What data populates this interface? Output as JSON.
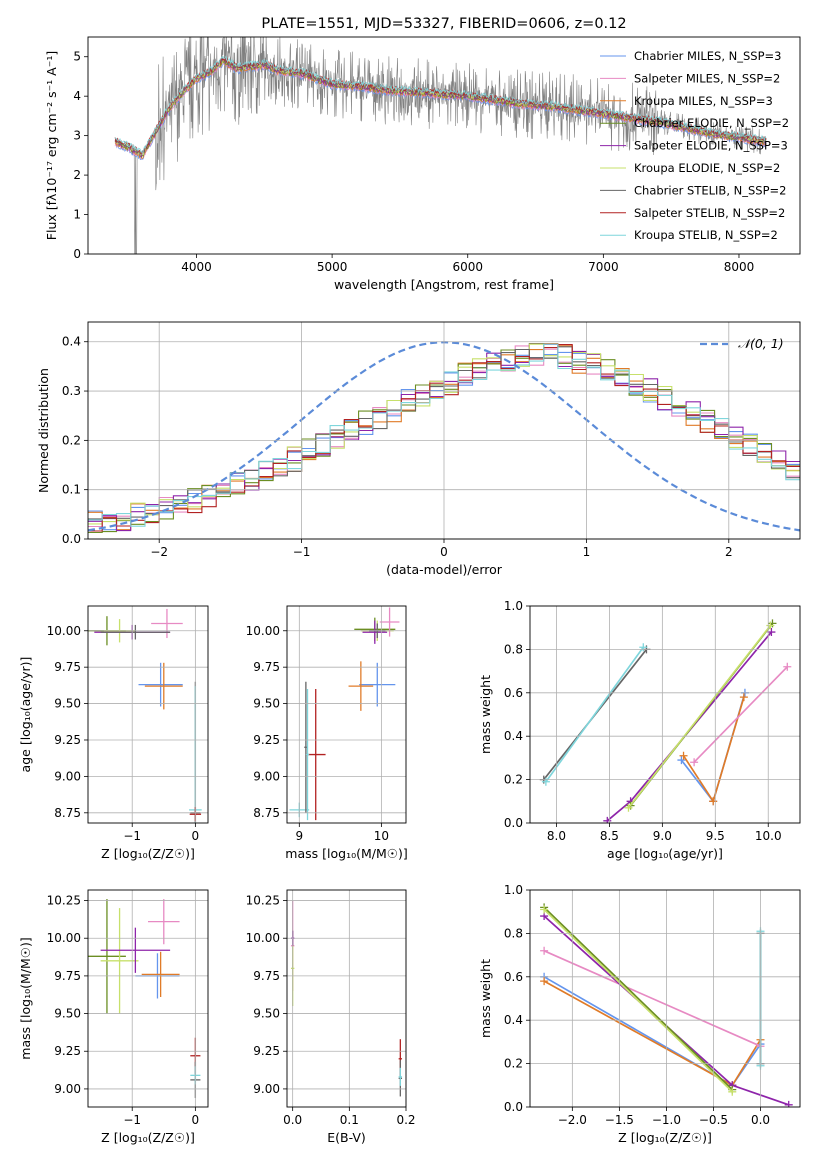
{
  "figure": {
    "background": "#ffffff",
    "line_colors": [
      "#6495ed",
      "#e78ac3",
      "#e07b28",
      "#6b8e23",
      "#8e24aa",
      "#c7e06b",
      "#666666",
      "#b22222",
      "#7fd6dc"
    ]
  },
  "chart_data": [
    {
      "id": "spectrum",
      "type": "line",
      "title": "PLATE=1551, MJD=53327, FIBERID=0606, z=0.12",
      "xlabel": "wavelength [Angstrom, rest frame]",
      "ylabel": "Flux [fλ10⁻¹⁷ erg cm⁻² s⁻¹ A⁻¹]",
      "xlim": [
        3200,
        8450
      ],
      "ylim": [
        0,
        5.5
      ],
      "xticks": [
        4000,
        5000,
        6000,
        7000,
        8000
      ],
      "yticks": [
        0,
        1,
        2,
        3,
        4,
        5
      ],
      "grid": false,
      "legend_position": "upper-right",
      "data_color": "#808080",
      "data_x_range": [
        3400,
        8200
      ],
      "model_x": [
        3400,
        3500,
        3600,
        3700,
        3800,
        3900,
        4000,
        4100,
        4200,
        4300,
        4400,
        4500,
        4600,
        4800,
        5000,
        5200,
        5400,
        5600,
        5800,
        6000,
        6200,
        6400,
        6600,
        6800,
        7000,
        7200,
        7400,
        7600,
        7800,
        8000,
        8200
      ],
      "model_y": [
        2.85,
        2.7,
        2.5,
        3.1,
        3.7,
        4.1,
        4.45,
        4.6,
        4.9,
        4.7,
        4.75,
        4.8,
        4.65,
        4.55,
        4.3,
        4.25,
        4.15,
        4.1,
        4.05,
        4.0,
        3.9,
        3.8,
        3.75,
        3.65,
        3.55,
        3.45,
        3.35,
        3.2,
        3.05,
        2.95,
        2.85
      ],
      "series": [
        {
          "name": "Chabrier MILES, N_SSP=3",
          "color": "#6495ed"
        },
        {
          "name": "Salpeter MILES, N_SSP=2",
          "color": "#e78ac3"
        },
        {
          "name": "Kroupa MILES, N_SSP=3",
          "color": "#e07b28"
        },
        {
          "name": "Chabrier ELODIE, N_SSP=2",
          "color": "#6b8e23"
        },
        {
          "name": "Salpeter ELODIE, N_SSP=3",
          "color": "#8e24aa"
        },
        {
          "name": "Kroupa ELODIE, N_SSP=2",
          "color": "#c7e06b"
        },
        {
          "name": "Chabrier STELIB, N_SSP=2",
          "color": "#666666"
        },
        {
          "name": "Salpeter STELIB, N_SSP=2",
          "color": "#b22222"
        },
        {
          "name": "Kroupa STELIB, N_SSP=2",
          "color": "#7fd6dc"
        }
      ]
    },
    {
      "id": "residuals",
      "type": "histogram",
      "xlabel": "(data-model)/error",
      "ylabel": "Normed distribution",
      "xlim": [
        -2.5,
        2.5
      ],
      "ylim": [
        0,
        0.44
      ],
      "xticks": [
        -2,
        -1,
        0,
        1,
        2
      ],
      "yticks": [
        0.0,
        0.1,
        0.2,
        0.3,
        0.4
      ],
      "grid": true,
      "legend_position": "upper-right",
      "reference": {
        "name": "𝒩(0, 1)",
        "color": "#5b8bd8",
        "style": "dashed"
      },
      "bin_width": 0.1,
      "bin_start": -2.5,
      "histogram_values": [
        0.035,
        0.038,
        0.042,
        0.05,
        0.058,
        0.062,
        0.07,
        0.078,
        0.088,
        0.098,
        0.11,
        0.123,
        0.135,
        0.15,
        0.162,
        0.178,
        0.19,
        0.205,
        0.218,
        0.235,
        0.245,
        0.26,
        0.278,
        0.29,
        0.3,
        0.315,
        0.335,
        0.345,
        0.355,
        0.36,
        0.37,
        0.375,
        0.375,
        0.37,
        0.36,
        0.355,
        0.345,
        0.33,
        0.315,
        0.3,
        0.285,
        0.27,
        0.255,
        0.238,
        0.22,
        0.205,
        0.19,
        0.175,
        0.16,
        0.145
      ],
      "histogram_colors": [
        "#6495ed",
        "#e78ac3",
        "#e07b28",
        "#6b8e23",
        "#8e24aa",
        "#c7e06b",
        "#666666",
        "#b22222",
        "#7fd6dc"
      ]
    },
    {
      "id": "age-vs-z",
      "type": "errorbar",
      "xlabel": "Z [log₁₀(Z/Z☉)]",
      "ylabel": "age  [log₁₀(age/yr)]",
      "xlim": [
        -1.7,
        0.2
      ],
      "ylim": [
        8.68,
        10.17
      ],
      "xticks": [
        -1,
        0
      ],
      "yticks": [
        8.75,
        9.0,
        9.25,
        9.5,
        9.75,
        10.0
      ],
      "grid": true,
      "points": [
        {
          "x": -1.4,
          "y": 10.0,
          "xerr": 0.3,
          "yerr": 0.1,
          "color": "#6b8e23"
        },
        {
          "x": -1.2,
          "y": 10.0,
          "xerr": 0.25,
          "yerr": 0.08,
          "color": "#c7e06b"
        },
        {
          "x": -0.45,
          "y": 10.05,
          "xerr": 0.25,
          "yerr": 0.1,
          "color": "#e78ac3"
        },
        {
          "x": -0.55,
          "y": 9.63,
          "xerr": 0.35,
          "yerr": 0.15,
          "color": "#6495ed"
        },
        {
          "x": -0.5,
          "y": 9.62,
          "xerr": 0.3,
          "yerr": 0.16,
          "color": "#e07b28"
        },
        {
          "x": -1.0,
          "y": 9.99,
          "xerr": 0.6,
          "yerr": 0.05,
          "color": "#8e24aa"
        },
        {
          "x": -0.95,
          "y": 9.99,
          "xerr": 0.55,
          "yerr": 0.05,
          "color": "#666666"
        },
        {
          "x": 0.0,
          "y": 8.75,
          "xerr": 0.08,
          "yerr": 0.9,
          "color": "#666666"
        },
        {
          "x": 0.0,
          "y": 8.77,
          "xerr": 0.1,
          "yerr": 0.85,
          "color": "#7fd6dc"
        },
        {
          "x": 0.0,
          "y": 8.74,
          "xerr": 0.09,
          "yerr": 0.05,
          "color": "#b22222"
        }
      ]
    },
    {
      "id": "age-vs-mass",
      "type": "errorbar",
      "xlabel": "mass [log₁₀(M/M☉)]",
      "ylabel": "",
      "xlim": [
        8.85,
        10.3
      ],
      "ylim": [
        8.68,
        10.17
      ],
      "xticks": [
        9,
        10
      ],
      "yticks": [
        8.75,
        9.0,
        9.25,
        9.5,
        9.75,
        10.0
      ],
      "grid": true,
      "points": [
        {
          "x": 9.0,
          "y": 8.77,
          "xerr": 0.12,
          "yerr": 0.05,
          "color": "#7fd6dc"
        },
        {
          "x": 9.08,
          "y": 9.2,
          "xerr": 0.02,
          "yerr": 0.45,
          "color": "#666666"
        },
        {
          "x": 9.2,
          "y": 9.15,
          "xerr": 0.12,
          "yerr": 0.45,
          "color": "#b22222"
        },
        {
          "x": 9.1,
          "y": 9.15,
          "xerr": 0.02,
          "yerr": 0.45,
          "color": "#7fd6dc"
        },
        {
          "x": 9.92,
          "y": 10.01,
          "xerr": 0.25,
          "yerr": 0.08,
          "color": "#6b8e23"
        },
        {
          "x": 9.95,
          "y": 10.0,
          "xerr": 0.2,
          "yerr": 0.07,
          "color": "#c7e06b"
        },
        {
          "x": 10.1,
          "y": 10.06,
          "xerr": 0.12,
          "yerr": 0.1,
          "color": "#e78ac3"
        },
        {
          "x": 9.95,
          "y": 9.63,
          "xerr": 0.22,
          "yerr": 0.15,
          "color": "#6495ed"
        },
        {
          "x": 9.75,
          "y": 9.62,
          "xerr": 0.15,
          "yerr": 0.17,
          "color": "#e07b28"
        },
        {
          "x": 9.92,
          "y": 9.99,
          "xerr": 0.15,
          "yerr": 0.08,
          "color": "#8e24aa"
        },
        {
          "x": 9.95,
          "y": 10.0,
          "xerr": 0.1,
          "yerr": 0.05,
          "color": "#666666"
        }
      ]
    },
    {
      "id": "weight-vs-age",
      "type": "line",
      "xlabel": "age  [log₁₀(age/yr)]",
      "ylabel": "mass weight",
      "xlim": [
        7.75,
        10.3
      ],
      "ylim": [
        0.0,
        1.0
      ],
      "xticks": [
        8.0,
        8.5,
        9.0,
        9.5,
        10.0
      ],
      "yticks": [
        0.0,
        0.2,
        0.4,
        0.6,
        0.8,
        1.0
      ],
      "grid": true,
      "series": [
        {
          "color": "#666666",
          "x": [
            7.88,
            8.85
          ],
          "y": [
            0.2,
            0.8
          ]
        },
        {
          "color": "#7fd6dc",
          "x": [
            7.9,
            8.82
          ],
          "y": [
            0.19,
            0.81
          ]
        },
        {
          "color": "#6495ed",
          "x": [
            9.18,
            9.48,
            9.78
          ],
          "y": [
            0.29,
            0.1,
            0.6
          ]
        },
        {
          "color": "#e07b28",
          "x": [
            9.2,
            9.48,
            9.77
          ],
          "y": [
            0.31,
            0.1,
            0.58
          ]
        },
        {
          "color": "#e78ac3",
          "x": [
            9.3,
            10.18
          ],
          "y": [
            0.28,
            0.72
          ]
        },
        {
          "color": "#8e24aa",
          "x": [
            8.48,
            8.7,
            10.03
          ],
          "y": [
            0.01,
            0.1,
            0.88
          ]
        },
        {
          "color": "#6b8e23",
          "x": [
            8.7,
            10.04
          ],
          "y": [
            0.08,
            0.92
          ]
        },
        {
          "color": "#c7e06b",
          "x": [
            8.68,
            10.02
          ],
          "y": [
            0.07,
            0.91
          ]
        }
      ]
    },
    {
      "id": "mass-vs-z",
      "type": "errorbar",
      "xlabel": "Z [log₁₀(Z/Z☉)]",
      "ylabel": "mass [log₁₀(M/M☉)]",
      "xlim": [
        -1.7,
        0.2
      ],
      "ylim": [
        8.88,
        10.32
      ],
      "xticks": [
        -1,
        0
      ],
      "yticks": [
        9.0,
        9.25,
        9.5,
        9.75,
        10.0,
        10.25
      ],
      "grid": true,
      "points": [
        {
          "x": -1.4,
          "y": 9.88,
          "xerr": 0.3,
          "yerr": 0.38,
          "color": "#6b8e23"
        },
        {
          "x": -1.2,
          "y": 9.85,
          "xerr": 0.3,
          "yerr": 0.35,
          "color": "#c7e06b"
        },
        {
          "x": -0.95,
          "y": 9.92,
          "xerr": 0.55,
          "yerr": 0.15,
          "color": "#8e24aa"
        },
        {
          "x": -0.6,
          "y": 9.75,
          "xerr": 0.35,
          "yerr": 0.15,
          "color": "#6495ed"
        },
        {
          "x": -0.55,
          "y": 9.76,
          "xerr": 0.3,
          "yerr": 0.15,
          "color": "#e07b28"
        },
        {
          "x": -0.5,
          "y": 10.11,
          "xerr": 0.25,
          "yerr": 0.15,
          "color": "#e78ac3"
        },
        {
          "x": 0.0,
          "y": 9.22,
          "xerr": 0.08,
          "yerr": 0.12,
          "color": "#b22222"
        },
        {
          "x": 0.0,
          "y": 9.06,
          "xerr": 0.08,
          "yerr": 0.12,
          "color": "#666666"
        },
        {
          "x": 0.0,
          "y": 9.09,
          "xerr": 0.08,
          "yerr": 0.06,
          "color": "#7fd6dc"
        }
      ]
    },
    {
      "id": "mass-vs-ebv",
      "type": "errorbar",
      "xlabel": "E(B-V)",
      "ylabel": "",
      "xlim": [
        -0.01,
        0.2
      ],
      "ylim": [
        8.88,
        10.32
      ],
      "xticks": [
        0.0,
        0.1,
        0.2
      ],
      "yticks": [
        9.0,
        9.25,
        9.5,
        9.75,
        10.0,
        10.25
      ],
      "grid": true,
      "points": [
        {
          "x": 0.0,
          "y": 9.95,
          "xerr": 0.003,
          "yerr": 0.3,
          "color": "#e78ac3"
        },
        {
          "x": 0.0,
          "y": 9.8,
          "xerr": 0.003,
          "yerr": 0.25,
          "color": "#c7e06b"
        },
        {
          "x": 0.0,
          "y": 10.0,
          "xerr": 0.003,
          "yerr": 0.05,
          "color": "#8e24aa"
        },
        {
          "x": 0.19,
          "y": 9.2,
          "xerr": 0.003,
          "yerr": 0.13,
          "color": "#b22222"
        },
        {
          "x": 0.19,
          "y": 9.07,
          "xerr": 0.003,
          "yerr": 0.12,
          "color": "#666666"
        },
        {
          "x": 0.19,
          "y": 9.08,
          "xerr": 0.003,
          "yerr": 0.06,
          "color": "#7fd6dc"
        }
      ]
    },
    {
      "id": "weight-vs-z",
      "type": "line",
      "xlabel": "Z [log₁₀(Z/Z☉)]",
      "ylabel": "mass weight",
      "xlim": [
        -2.45,
        0.42
      ],
      "ylim": [
        0.0,
        1.0
      ],
      "xticks": [
        -2.0,
        -1.5,
        -1.0,
        -0.5,
        0.0
      ],
      "yticks": [
        0.0,
        0.2,
        0.4,
        0.6,
        0.8,
        1.0
      ],
      "grid": true,
      "series": [
        {
          "color": "#6495ed",
          "x": [
            -2.3,
            -0.3,
            0.0
          ],
          "y": [
            0.6,
            0.1,
            0.29
          ]
        },
        {
          "color": "#e07b28",
          "x": [
            -2.3,
            -0.3,
            0.0
          ],
          "y": [
            0.58,
            0.1,
            0.31
          ]
        },
        {
          "color": "#e78ac3",
          "x": [
            -2.3,
            0.0
          ],
          "y": [
            0.72,
            0.28
          ]
        },
        {
          "color": "#8e24aa",
          "x": [
            -2.3,
            -0.3,
            0.3
          ],
          "y": [
            0.88,
            0.1,
            0.01
          ]
        },
        {
          "color": "#6b8e23",
          "x": [
            -2.3,
            -0.3
          ],
          "y": [
            0.92,
            0.08
          ]
        },
        {
          "color": "#c7e06b",
          "x": [
            -2.3,
            -0.3
          ],
          "y": [
            0.91,
            0.07
          ]
        },
        {
          "color": "#666666",
          "x": [
            0.0,
            0.0
          ],
          "y": [
            0.2,
            0.8
          ]
        },
        {
          "color": "#7fd6dc",
          "x": [
            0.0,
            0.0
          ],
          "y": [
            0.19,
            0.81
          ]
        }
      ]
    }
  ]
}
